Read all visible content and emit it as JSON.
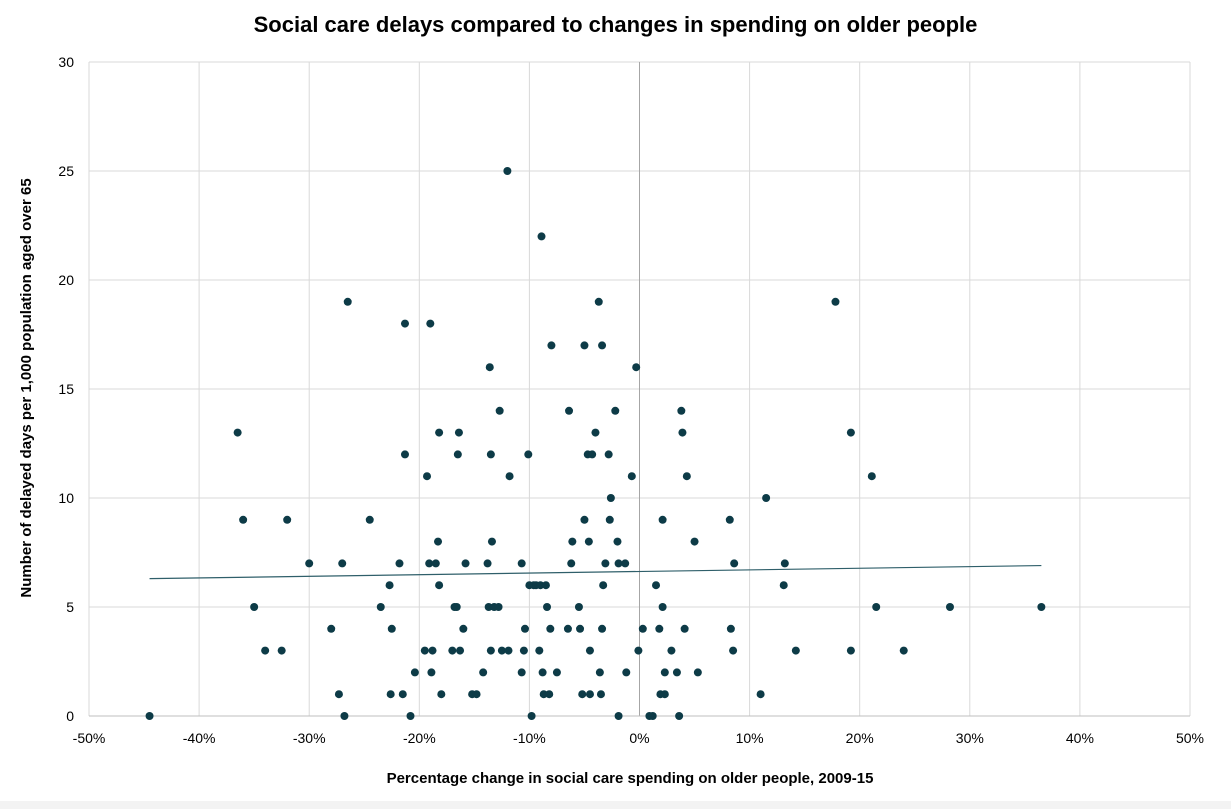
{
  "chart_data": {
    "type": "scatter",
    "title": "Social care delays compared to changes in spending on older people",
    "xlabel": "Percentage change in social care spending on older people, 2009-15",
    "ylabel": "Number of delayed days per 1,000 population aged over 65",
    "xlim": [
      -50,
      50
    ],
    "ylim": [
      0,
      30
    ],
    "x_ticks": [
      -50,
      -40,
      -30,
      -20,
      -10,
      0,
      10,
      20,
      30,
      40,
      50
    ],
    "x_tick_labels": [
      "-50%",
      "-40%",
      "-30%",
      "-20%",
      "-10%",
      "0%",
      "10%",
      "20%",
      "30%",
      "40%",
      "50%"
    ],
    "y_ticks": [
      0,
      5,
      10,
      15,
      20,
      25,
      30
    ],
    "y_tick_labels": [
      "0",
      "5",
      "10",
      "15",
      "20",
      "25",
      "30"
    ],
    "grid": true,
    "point_color": "#0d3b47",
    "trendline_color": "#2f5f6a",
    "trendline": {
      "x": [
        -44.5,
        36.5
      ],
      "y": [
        6.3,
        6.9
      ]
    },
    "points": [
      [
        -44.5,
        0
      ],
      [
        -36.5,
        13
      ],
      [
        -36,
        9
      ],
      [
        -35,
        5
      ],
      [
        -34,
        3
      ],
      [
        -32.5,
        3
      ],
      [
        -32,
        9
      ],
      [
        -30,
        7
      ],
      [
        -28,
        4
      ],
      [
        -27.3,
        1
      ],
      [
        -27,
        7
      ],
      [
        -26.8,
        0
      ],
      [
        -26.5,
        19
      ],
      [
        -24.5,
        9
      ],
      [
        -23.5,
        5
      ],
      [
        -22.7,
        6
      ],
      [
        -22.6,
        1
      ],
      [
        -22.5,
        4
      ],
      [
        -21.8,
        7
      ],
      [
        -21.5,
        1
      ],
      [
        -21.3,
        12
      ],
      [
        -21.3,
        18
      ],
      [
        -20.8,
        0
      ],
      [
        -20.4,
        2
      ],
      [
        -19.5,
        3
      ],
      [
        -19.3,
        11
      ],
      [
        -19.1,
        7
      ],
      [
        -19,
        18
      ],
      [
        -18.9,
        2
      ],
      [
        -18.8,
        3
      ],
      [
        -18.5,
        7
      ],
      [
        -18.3,
        8
      ],
      [
        -18.2,
        6
      ],
      [
        -18.2,
        13
      ],
      [
        -18,
        1
      ],
      [
        -17,
        3
      ],
      [
        -16.8,
        5
      ],
      [
        -16.6,
        5
      ],
      [
        -16.5,
        12
      ],
      [
        -16.4,
        13
      ],
      [
        -16.3,
        3
      ],
      [
        -16,
        4
      ],
      [
        -15.8,
        7
      ],
      [
        -15.2,
        1
      ],
      [
        -14.8,
        1
      ],
      [
        -14.2,
        2
      ],
      [
        -13.8,
        7
      ],
      [
        -13.7,
        5
      ],
      [
        -13.6,
        16
      ],
      [
        -13.5,
        3
      ],
      [
        -13.5,
        12
      ],
      [
        -13.4,
        8
      ],
      [
        -13.2,
        5
      ],
      [
        -12.8,
        5
      ],
      [
        -12.7,
        14
      ],
      [
        -12.5,
        3
      ],
      [
        -12,
        25
      ],
      [
        -11.8,
        11
      ],
      [
        -11.9,
        3
      ],
      [
        -10.7,
        2
      ],
      [
        -10.7,
        7
      ],
      [
        -10.5,
        3
      ],
      [
        -10.4,
        4
      ],
      [
        -10.1,
        12
      ],
      [
        -10,
        6
      ],
      [
        -9.8,
        0
      ],
      [
        -9.6,
        6
      ],
      [
        -9.4,
        6
      ],
      [
        -9.1,
        3
      ],
      [
        -9,
        6
      ],
      [
        -8.9,
        22
      ],
      [
        -8.8,
        2
      ],
      [
        -8.7,
        1
      ],
      [
        -8.5,
        6
      ],
      [
        -8.4,
        5
      ],
      [
        -8.2,
        1
      ],
      [
        -8.1,
        4
      ],
      [
        -8,
        17
      ],
      [
        -7.5,
        2
      ],
      [
        -6.5,
        4
      ],
      [
        -6.4,
        14
      ],
      [
        -6.2,
        7
      ],
      [
        -6.1,
        8
      ],
      [
        -5.5,
        5
      ],
      [
        -5.4,
        4
      ],
      [
        -5.2,
        1
      ],
      [
        -5,
        17
      ],
      [
        -5,
        9
      ],
      [
        -4.7,
        12
      ],
      [
        -4.6,
        8
      ],
      [
        -4.5,
        3
      ],
      [
        -4.5,
        1
      ],
      [
        -4.3,
        12
      ],
      [
        -4,
        13
      ],
      [
        -3.7,
        19
      ],
      [
        -3.6,
        2
      ],
      [
        -3.5,
        1
      ],
      [
        -3.4,
        17
      ],
      [
        -3.4,
        4
      ],
      [
        -3.3,
        6
      ],
      [
        -3.1,
        7
      ],
      [
        -2.8,
        12
      ],
      [
        -2.7,
        9
      ],
      [
        -2.6,
        10
      ],
      [
        -2.2,
        14
      ],
      [
        -2,
        8
      ],
      [
        -1.9,
        7
      ],
      [
        -1.9,
        0
      ],
      [
        -1.3,
        7
      ],
      [
        -1.2,
        2
      ],
      [
        -0.7,
        11
      ],
      [
        -0.3,
        16
      ],
      [
        -0.1,
        3
      ],
      [
        0.3,
        4
      ],
      [
        0.9,
        0
      ],
      [
        1.2,
        0
      ],
      [
        1.5,
        6
      ],
      [
        1.8,
        4
      ],
      [
        1.9,
        1
      ],
      [
        2.1,
        9
      ],
      [
        2.1,
        5
      ],
      [
        2.3,
        1
      ],
      [
        2.3,
        2
      ],
      [
        2.9,
        3
      ],
      [
        3.4,
        2
      ],
      [
        3.6,
        0
      ],
      [
        3.8,
        14
      ],
      [
        3.9,
        13
      ],
      [
        4.1,
        4
      ],
      [
        4.3,
        11
      ],
      [
        5,
        8
      ],
      [
        5.3,
        2
      ],
      [
        8.2,
        9
      ],
      [
        8.3,
        4
      ],
      [
        8.5,
        3
      ],
      [
        8.6,
        7
      ],
      [
        11,
        1
      ],
      [
        11.5,
        10
      ],
      [
        13.1,
        6
      ],
      [
        13.2,
        7
      ],
      [
        14.2,
        3
      ],
      [
        17.8,
        19
      ],
      [
        19.2,
        13
      ],
      [
        19.2,
        3
      ],
      [
        21.1,
        11
      ],
      [
        21.5,
        5
      ],
      [
        24,
        3
      ],
      [
        28.2,
        5
      ],
      [
        36.5,
        5
      ]
    ]
  }
}
